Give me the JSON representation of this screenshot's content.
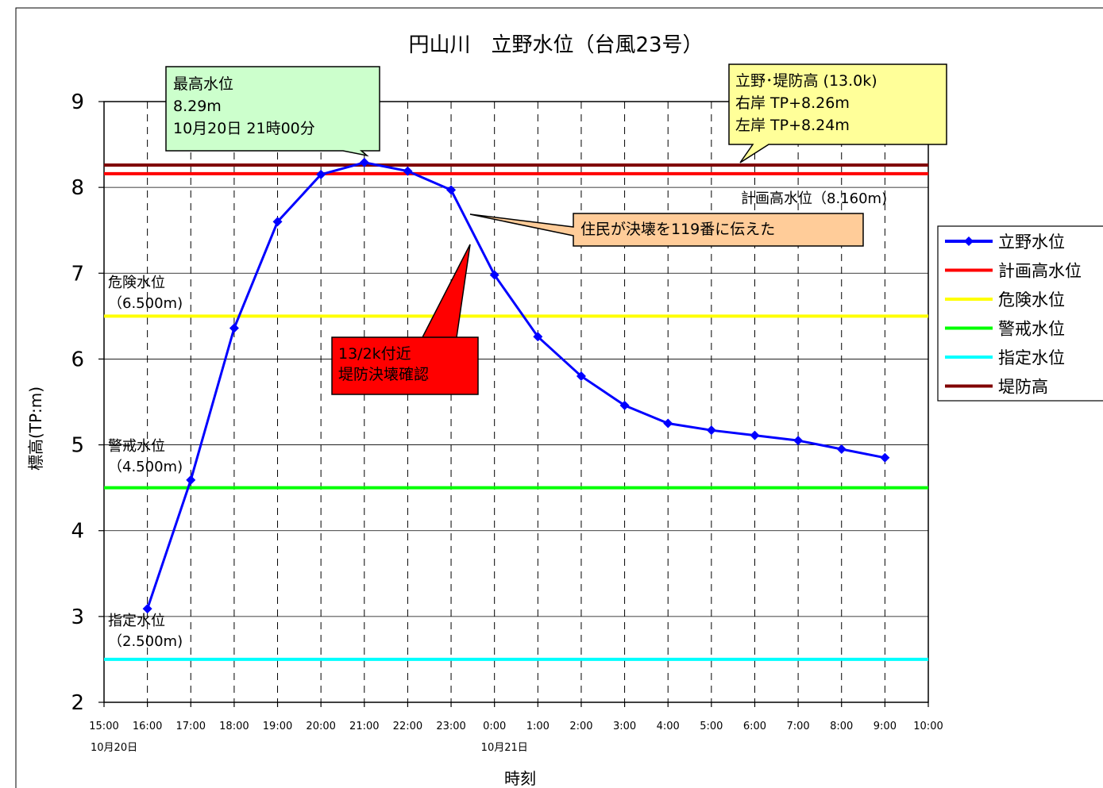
{
  "chart_data": {
    "type": "line",
    "title": "円山川　立野水位（台風23号）",
    "xlabel": "時刻",
    "ylabel": "標高(TP:m)",
    "ylim": [
      2,
      9
    ],
    "yticks": [
      "2",
      "3",
      "4",
      "5",
      "6",
      "7",
      "8",
      "9"
    ],
    "xticks": [
      "15:00",
      "16:00",
      "17:00",
      "18:00",
      "19:00",
      "20:00",
      "21:00",
      "22:00",
      "23:00",
      "0:00",
      "1:00",
      "2:00",
      "3:00",
      "4:00",
      "5:00",
      "6:00",
      "7:00",
      "8:00",
      "9:00",
      "10:00"
    ],
    "date_labels": [
      {
        "index": 0,
        "text": "10月20日"
      },
      {
        "index": 9,
        "text": "10月21日"
      }
    ],
    "grid": "horizontal solid, vertical dashed",
    "legend_position": "right",
    "series": [
      {
        "name": "立野水位",
        "color": "#0000ff",
        "marker": "diamond",
        "x_index": [
          1,
          2,
          3,
          4,
          5,
          6,
          7,
          8,
          9,
          10,
          11,
          12,
          13,
          14,
          15,
          16,
          17,
          18
        ],
        "values": [
          3.09,
          4.59,
          6.36,
          7.6,
          8.15,
          8.29,
          8.19,
          7.97,
          6.98,
          6.26,
          5.8,
          5.46,
          5.25,
          5.17,
          5.11,
          5.05,
          4.95,
          4.85
        ]
      }
    ],
    "reference_lines": [
      {
        "name": "計画高水位",
        "value": 8.16,
        "color": "#ff0000"
      },
      {
        "name": "危険水位",
        "value": 6.5,
        "color": "#ffff00"
      },
      {
        "name": "警戒水位",
        "value": 4.5,
        "color": "#00ff00"
      },
      {
        "name": "指定水位",
        "value": 2.5,
        "color": "#00ffff"
      },
      {
        "name": "堤防高",
        "value": 8.26,
        "color": "#800000"
      }
    ],
    "line_labels": [
      {
        "key": "keikaku",
        "lines": [
          "計画高水位（8.160m)"
        ]
      },
      {
        "key": "kiken",
        "lines": [
          "危険水位",
          "（6.500m)"
        ]
      },
      {
        "key": "keikai",
        "lines": [
          "警戒水位",
          "（4.500m)"
        ]
      },
      {
        "key": "shitei",
        "lines": [
          "指定水位",
          "（2.500m)"
        ]
      }
    ],
    "annotations": [
      {
        "key": "peak",
        "lines": [
          "最高水位",
          " 8.29m",
          "10月20日 21時00分"
        ],
        "fill": "#ccffcc"
      },
      {
        "key": "levee",
        "lines": [
          "立野･堤防高 (13.0k)",
          "  右岸 TP+8.26m",
          "  左岸 TP+8.24m"
        ],
        "fill": "#ffff99"
      },
      {
        "key": "report",
        "lines": [
          "住民が決壊を119番に伝えた"
        ],
        "fill": "#ffcc99"
      },
      {
        "key": "breach",
        "lines": [
          "13/2k付近",
          "堤防決壊確認"
        ],
        "fill": "#ff0000"
      }
    ]
  }
}
